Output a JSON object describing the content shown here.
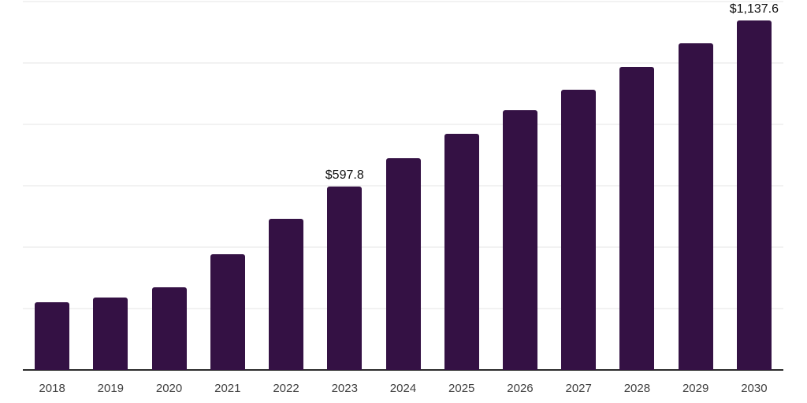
{
  "chart_data": {
    "type": "bar",
    "categories": [
      "2018",
      "2019",
      "2020",
      "2021",
      "2022",
      "2023",
      "2024",
      "2025",
      "2026",
      "2027",
      "2028",
      "2029",
      "2030"
    ],
    "values": [
      221,
      235,
      270,
      378,
      492,
      597.8,
      689,
      768,
      845,
      912,
      987,
      1063,
      1137.6
    ],
    "data_labels": [
      null,
      null,
      null,
      null,
      null,
      "$597.8",
      null,
      null,
      null,
      null,
      null,
      null,
      "$1,137.6"
    ],
    "title": "",
    "xlabel": "",
    "ylabel": "",
    "ylim": [
      0,
      1200
    ],
    "gridline_step": 200,
    "grid": "horizontal-only",
    "legend": "none",
    "y_tick_labels_visible": false,
    "colors": {
      "bar": "#341144",
      "axis_line": "#2b2b2b",
      "gridline": "#f2f2f2",
      "x_tick_label": "#3f3f3f",
      "data_label": "#111111",
      "background": "#ffffff"
    }
  }
}
